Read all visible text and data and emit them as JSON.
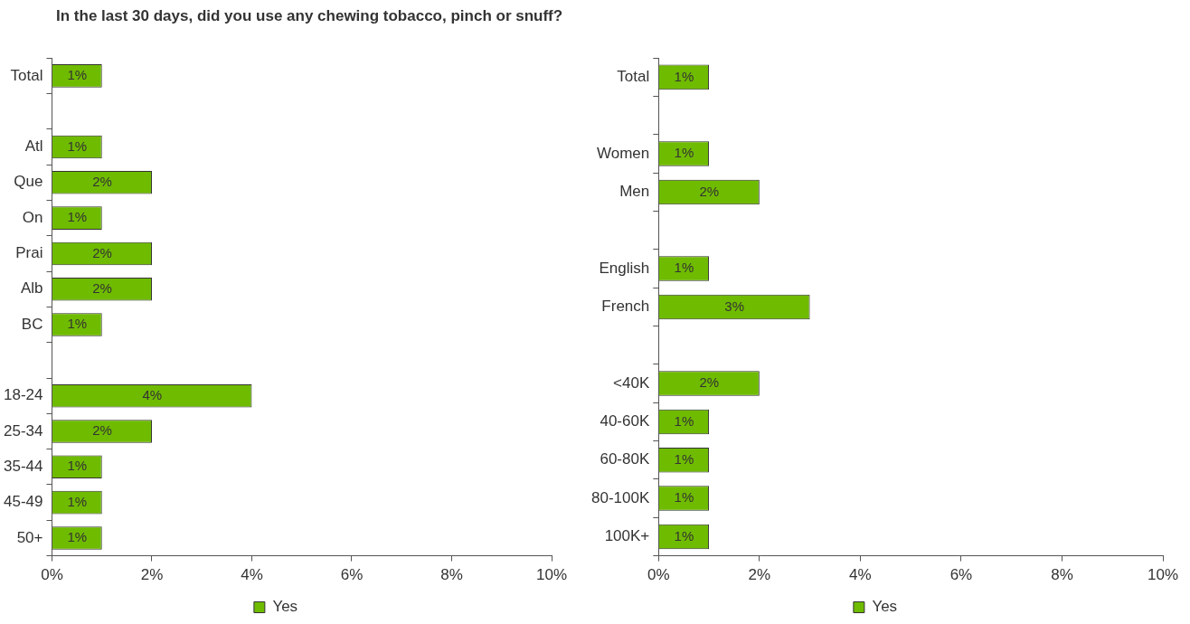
{
  "chart_data": [
    {
      "type": "bar",
      "orientation": "horizontal",
      "title": "In the last 30 days, did you use any chewing tobacco, pinch or snuff?",
      "categories": [
        "Total",
        null,
        "Atl",
        "Que",
        "On",
        "Prai",
        "Alb",
        "BC",
        null,
        "18-24",
        "25-34",
        "35-44",
        "45-49",
        "50+"
      ],
      "series": [
        {
          "name": "Yes",
          "color": "#6fbb00",
          "values": [
            1,
            null,
            1,
            2,
            1,
            2,
            2,
            1,
            null,
            4,
            2,
            1,
            1,
            1
          ],
          "value_labels": [
            "1%",
            null,
            "1%",
            "2%",
            "1%",
            "2%",
            "2%",
            "1%",
            null,
            "4%",
            "2%",
            "1%",
            "1%",
            "1%"
          ]
        }
      ],
      "xlim": [
        0,
        10
      ],
      "xticks": [
        {
          "value": 0,
          "label": "0%"
        },
        {
          "value": 2,
          "label": "2%"
        },
        {
          "value": 4,
          "label": "4%"
        },
        {
          "value": 6,
          "label": "6%"
        },
        {
          "value": 8,
          "label": "8%"
        },
        {
          "value": 10,
          "label": "10%"
        }
      ],
      "grid": false,
      "legend": "bottom"
    },
    {
      "type": "bar",
      "orientation": "horizontal",
      "categories": [
        "Total",
        null,
        "Women",
        "Men",
        null,
        "English",
        "French",
        null,
        "<40K",
        "40-60K",
        "60-80K",
        "80-100K",
        "100K+"
      ],
      "series": [
        {
          "name": "Yes",
          "color": "#6fbb00",
          "values": [
            1,
            null,
            1,
            2,
            null,
            1,
            3,
            null,
            2,
            1,
            1,
            1,
            1
          ],
          "value_labels": [
            "1%",
            null,
            "1%",
            "2%",
            null,
            "1%",
            "3%",
            null,
            "2%",
            "1%",
            "1%",
            "1%",
            "1%"
          ]
        }
      ],
      "xlim": [
        0,
        10
      ],
      "xticks": [
        {
          "value": 0,
          "label": "0%"
        },
        {
          "value": 2,
          "label": "2%"
        },
        {
          "value": 4,
          "label": "4%"
        },
        {
          "value": 6,
          "label": "6%"
        },
        {
          "value": 8,
          "label": "8%"
        },
        {
          "value": 10,
          "label": "10%"
        }
      ],
      "grid": false,
      "legend": "bottom"
    }
  ]
}
